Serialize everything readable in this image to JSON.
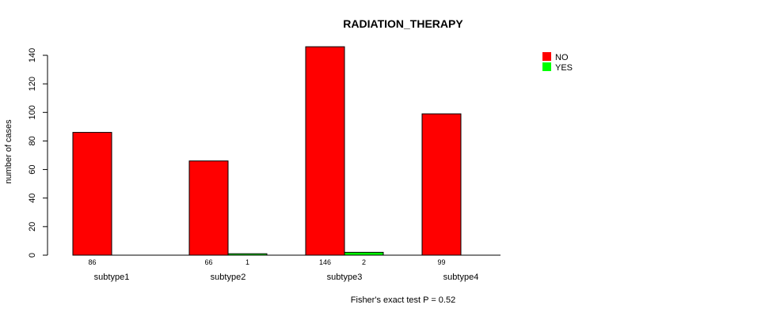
{
  "chart_data": {
    "type": "bar",
    "title": "RADIATION_THERAPY",
    "xlabel": "",
    "ylabel": "number of cases",
    "ylim": [
      0,
      140
    ],
    "yticks": [
      0,
      20,
      40,
      60,
      80,
      100,
      120,
      140
    ],
    "categories": [
      "subtype1",
      "subtype2",
      "subtype3",
      "subtype4"
    ],
    "series": [
      {
        "name": "NO",
        "color": "#ff0000",
        "values": [
          86,
          66,
          146,
          99
        ],
        "labels": [
          "86",
          "66",
          "146",
          "99"
        ]
      },
      {
        "name": "YES",
        "color": "#00ff00",
        "values": [
          0,
          1,
          2,
          0
        ],
        "labels": [
          "",
          "1",
          "2",
          ""
        ]
      }
    ],
    "legend_position": "top-right",
    "grid": false,
    "footnote": "Fisher's exact test P = 0.52"
  }
}
